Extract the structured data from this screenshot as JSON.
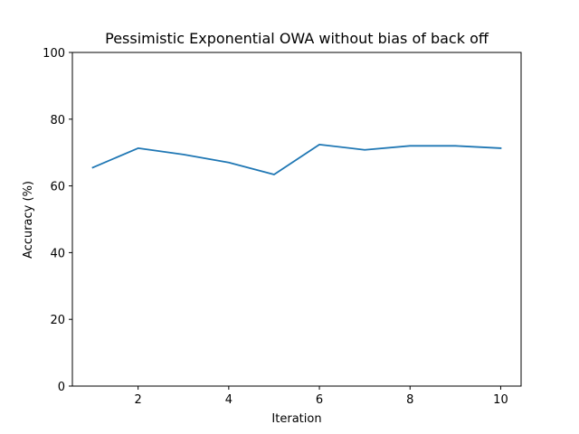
{
  "chart_data": {
    "type": "line",
    "title": "Pessimistic Exponential OWA without bias of back off",
    "xlabel": "Iteration",
    "ylabel": "Accuracy (%)",
    "xlim": [
      0.55,
      10.45
    ],
    "ylim": [
      0,
      100
    ],
    "xticks": [
      2,
      4,
      6,
      8,
      10
    ],
    "yticks": [
      0,
      20,
      40,
      60,
      80,
      100
    ],
    "grid": false,
    "series": [
      {
        "color": "#1f77b4",
        "x": [
          1,
          2,
          3,
          4,
          5,
          6,
          7,
          8,
          9,
          10
        ],
        "y": [
          65.5,
          71.3,
          69.4,
          67.0,
          63.4,
          72.4,
          70.8,
          72.0,
          72.0,
          71.3
        ]
      }
    ]
  }
}
